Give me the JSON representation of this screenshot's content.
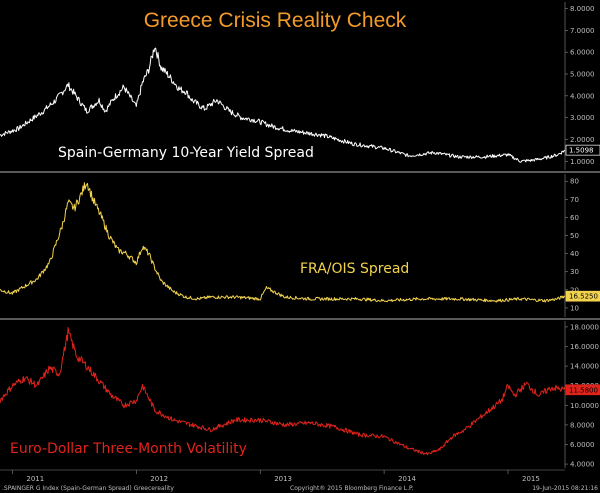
{
  "title": "Greece Crisis Reality Check",
  "colors": {
    "background": "#000000",
    "title": "#f39a2a",
    "series1": "#ffffff",
    "series2": "#f2d34e",
    "series3": "#e0231b",
    "divider": "#b4b4b4",
    "axis_text": "#bfbfbf"
  },
  "footer": {
    "left": ".SPAINGER G Index (Spain-German Spread) Greecereality",
    "center": "Copyright® 2015 Bloomberg Finance L.P.",
    "right": "19-Jun-2015 08:21:16"
  },
  "chart_data": [
    {
      "type": "line",
      "title": "Spain-Germany 10-Year Yield Spread",
      "x_ticks": [
        "2011",
        "2012",
        "2013",
        "2014",
        "2015"
      ],
      "y_ticks": [
        "8.0000",
        "7.0000",
        "6.0000",
        "5.0000",
        "4.0000",
        "3.0000",
        "2.0000",
        "1.0000"
      ],
      "ylim": [
        0.6,
        8.3
      ],
      "last_value_label": "1.5098",
      "x": [
        2010.9,
        2011.05,
        2011.15,
        2011.25,
        2011.35,
        2011.45,
        2011.5,
        2011.55,
        2011.6,
        2011.7,
        2011.75,
        2011.82,
        2011.9,
        2012.0,
        2012.05,
        2012.1,
        2012.15,
        2012.2,
        2012.25,
        2012.35,
        2012.4,
        2012.45,
        2012.55,
        2012.65,
        2012.75,
        2012.85,
        2012.95,
        2013.1,
        2013.25,
        2013.5,
        2013.75,
        2014.0,
        2014.2,
        2014.4,
        2014.6,
        2014.8,
        2015.0,
        2015.1,
        2015.2,
        2015.3,
        2015.4,
        2015.46
      ],
      "values": [
        2.2,
        2.5,
        2.9,
        3.3,
        3.8,
        4.5,
        4.1,
        3.7,
        3.3,
        3.8,
        3.3,
        3.9,
        4.4,
        3.5,
        4.6,
        5.2,
        6.3,
        5.3,
        5.0,
        4.3,
        4.2,
        3.8,
        3.4,
        3.8,
        3.3,
        3.0,
        2.9,
        2.6,
        2.4,
        2.2,
        1.8,
        1.6,
        1.25,
        1.4,
        1.2,
        1.2,
        1.3,
        1.0,
        1.05,
        1.15,
        1.3,
        1.51
      ]
    },
    {
      "type": "line",
      "title": "FRA/OIS Spread",
      "x_ticks": [
        "2011",
        "2012",
        "2013",
        "2014",
        "2015"
      ],
      "y_ticks": [
        "80",
        "70",
        "60",
        "50",
        "40",
        "30",
        "20",
        "10"
      ],
      "ylim": [
        5,
        84
      ],
      "last_value_label": "16.5250",
      "x": [
        2010.9,
        2011.0,
        2011.1,
        2011.2,
        2011.3,
        2011.4,
        2011.45,
        2011.5,
        2011.55,
        2011.6,
        2011.65,
        2011.72,
        2011.78,
        2011.85,
        2011.92,
        2012.0,
        2012.05,
        2012.1,
        2012.15,
        2012.2,
        2012.3,
        2012.4,
        2012.5,
        2012.6,
        2012.8,
        2013.0,
        2013.05,
        2013.2,
        2013.4,
        2013.6,
        2013.8,
        2014.0,
        2014.3,
        2014.6,
        2014.9,
        2015.1,
        2015.3,
        2015.4,
        2015.46
      ],
      "values": [
        20,
        18,
        22,
        26,
        35,
        55,
        68,
        65,
        72,
        80,
        70,
        60,
        50,
        42,
        40,
        35,
        44,
        40,
        32,
        25,
        19,
        16,
        15,
        16,
        16,
        15,
        21,
        16,
        15,
        15,
        15,
        14,
        15,
        15,
        14,
        15,
        14,
        15,
        16.5
      ]
    },
    {
      "type": "line",
      "title": "Euro-Dollar Three-Month Volatility",
      "x_ticks": [
        "2011",
        "2012",
        "2013",
        "2014",
        "2015"
      ],
      "y_ticks": [
        "18.0000",
        "16.0000",
        "14.0000",
        "12.0000",
        "10.0000",
        "8.0000",
        "6.0000",
        "4.0000"
      ],
      "ylim": [
        3.6,
        18.6
      ],
      "last_value_label": "11.5800",
      "x": [
        2010.9,
        2011.0,
        2011.1,
        2011.2,
        2011.3,
        2011.38,
        2011.45,
        2011.52,
        2011.6,
        2011.7,
        2011.8,
        2011.9,
        2012.0,
        2012.05,
        2012.15,
        2012.3,
        2012.45,
        2012.6,
        2012.8,
        2013.0,
        2013.2,
        2013.4,
        2013.6,
        2013.8,
        2014.0,
        2014.1,
        2014.2,
        2014.3,
        2014.35,
        2014.45,
        2014.55,
        2014.65,
        2014.75,
        2014.85,
        2014.95,
        2015.0,
        2015.05,
        2015.15,
        2015.25,
        2015.35,
        2015.46
      ],
      "values": [
        10.5,
        12.0,
        12.8,
        12.0,
        13.8,
        13.2,
        17.5,
        15.0,
        14.0,
        12.5,
        11.0,
        10.0,
        10.5,
        12.0,
        9.5,
        8.5,
        8.0,
        7.5,
        8.5,
        8.5,
        8.0,
        8.2,
        7.8,
        7.0,
        6.8,
        6.2,
        5.6,
        5.2,
        5.0,
        5.5,
        6.8,
        7.5,
        8.5,
        9.5,
        10.5,
        12.0,
        11.0,
        12.2,
        11.0,
        11.8,
        11.58
      ]
    }
  ]
}
